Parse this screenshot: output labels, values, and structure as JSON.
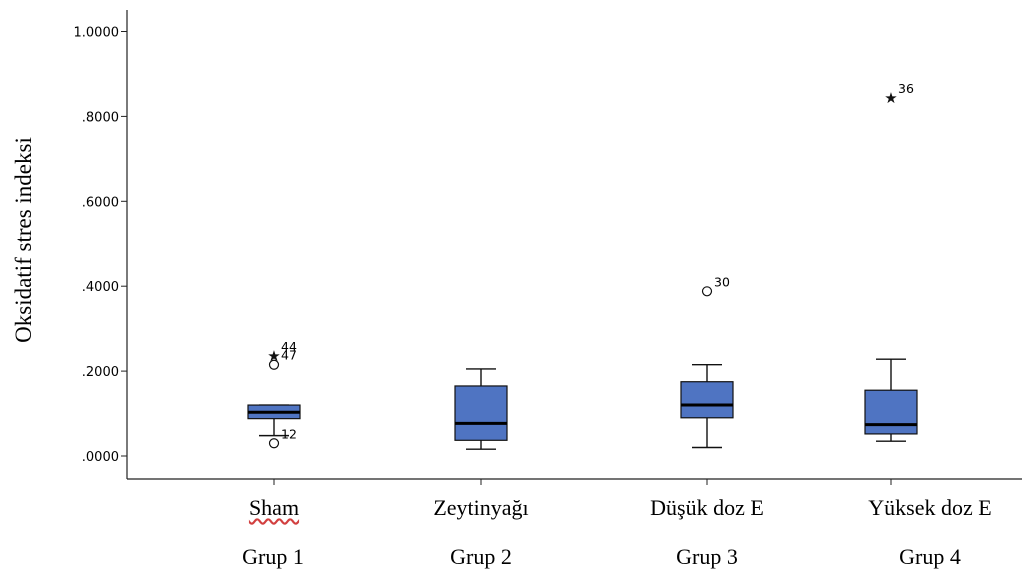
{
  "chart_data": {
    "type": "box",
    "ylabel": "Oksidatif stres indeksi",
    "ylim": [
      -0.04,
      1.06
    ],
    "y_ticks": [
      {
        "value": 0.0,
        "label": ".0000"
      },
      {
        "value": 0.2,
        "label": ".2000"
      },
      {
        "value": 0.4,
        "label": ".4000"
      },
      {
        "value": 0.6,
        "label": ".6000"
      },
      {
        "value": 0.8,
        "label": ".8000"
      },
      {
        "value": 1.0,
        "label": "1.0000"
      }
    ],
    "box_color": "#4f74c2",
    "categories": [
      "Sham",
      "Zeytinyağı",
      "Düşük doz E",
      "Yüksek doz E"
    ],
    "groups": [
      "Grup 1",
      "Grup 2",
      "Grup 3",
      "Grup 4"
    ],
    "boxes": [
      {
        "whisker_low": 0.048,
        "q1": 0.088,
        "median": 0.103,
        "q3": 0.12,
        "whisker_high": 0.12
      },
      {
        "whisker_low": 0.016,
        "q1": 0.037,
        "median": 0.077,
        "q3": 0.165,
        "whisker_high": 0.205
      },
      {
        "whisker_low": 0.02,
        "q1": 0.09,
        "median": 0.12,
        "q3": 0.175,
        "whisker_high": 0.215
      },
      {
        "whisker_low": 0.035,
        "q1": 0.052,
        "median": 0.074,
        "q3": 0.155,
        "whisker_high": 0.228
      }
    ],
    "outliers": [
      {
        "group": 0,
        "value": 0.235,
        "marker": "star",
        "label": "44"
      },
      {
        "group": 0,
        "value": 0.215,
        "marker": "circle",
        "label": "47"
      },
      {
        "group": 0,
        "value": 0.03,
        "marker": "circle",
        "label": "12"
      },
      {
        "group": 2,
        "value": 0.388,
        "marker": "circle",
        "label": "30"
      },
      {
        "group": 3,
        "value": 0.843,
        "marker": "star",
        "label": "36"
      }
    ]
  }
}
